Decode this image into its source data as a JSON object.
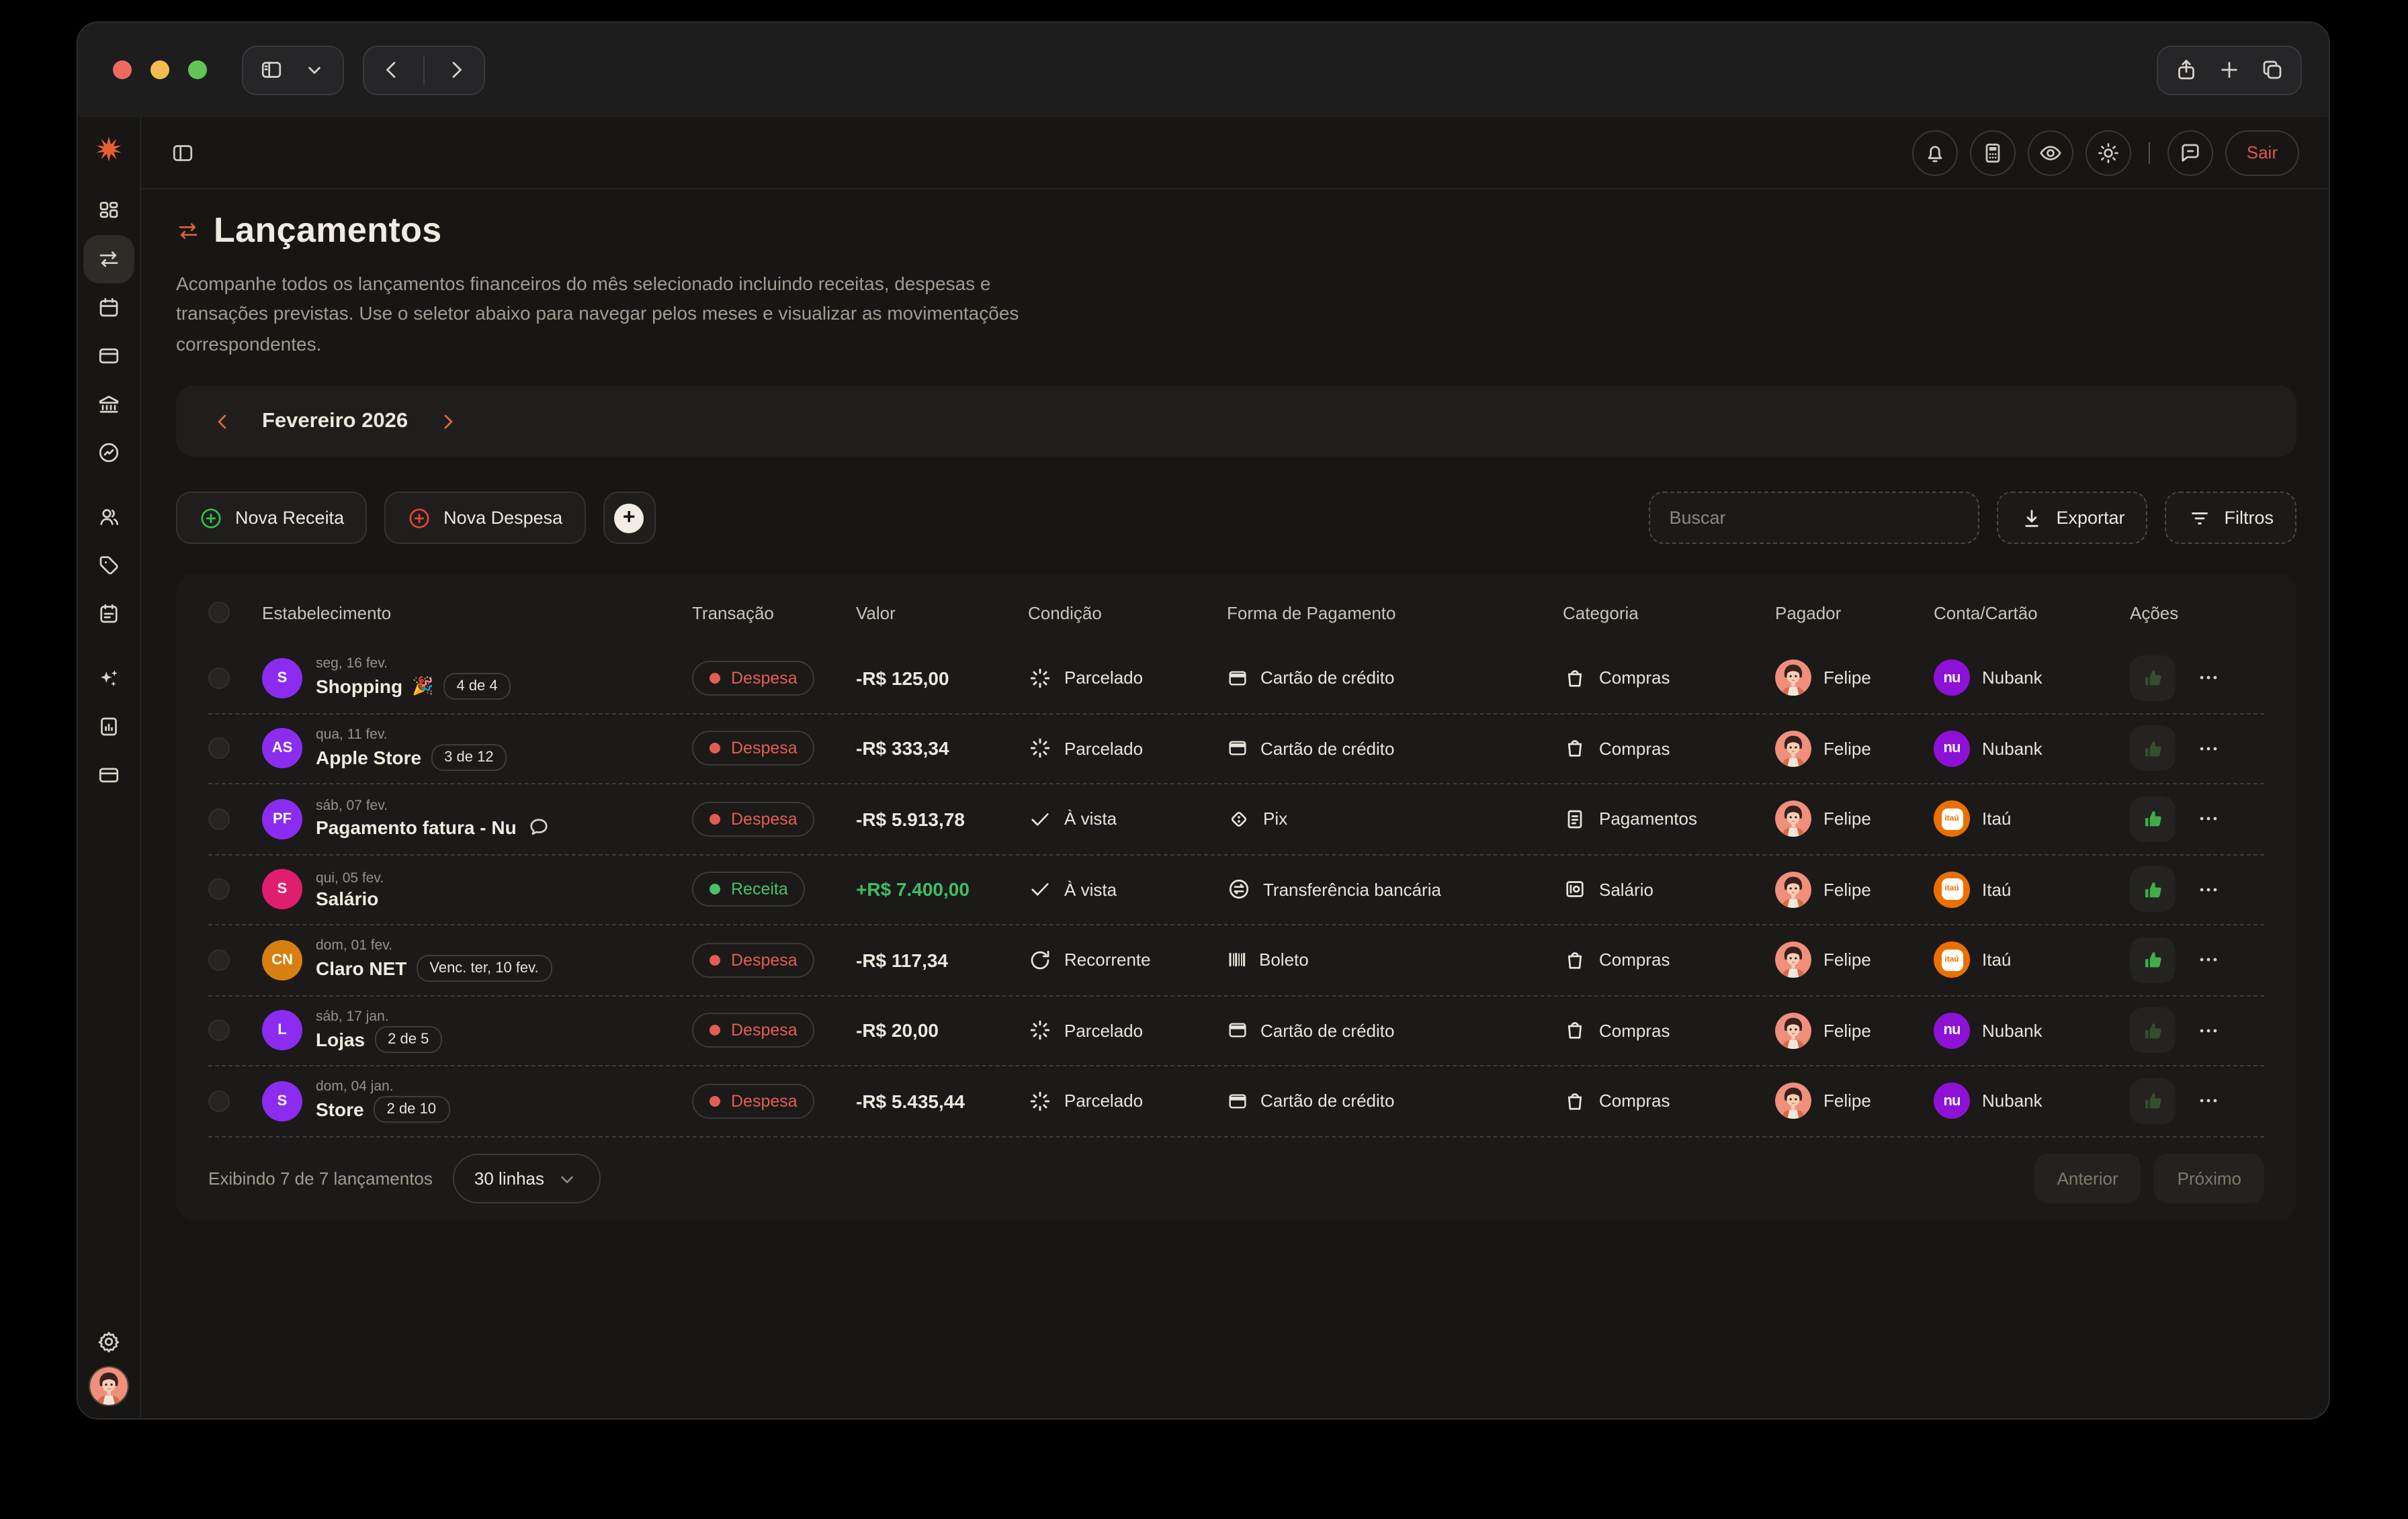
{
  "window": {
    "toolbar_icons": [
      "sidebar-panel-icon",
      "chevron-down-icon",
      "chevron-left-icon",
      "chevron-right-icon",
      "share-icon",
      "plus-icon",
      "tabs-icon"
    ]
  },
  "app": {
    "header": {
      "logout_label": "Sair",
      "icons": [
        "bell-icon",
        "calculator-icon",
        "eye-icon",
        "sun-icon",
        "chat-icon"
      ]
    },
    "sidebar": {
      "logo_icon": "logo-asterisk-icon",
      "items": [
        {
          "name": "sidebar-item-dashboard",
          "icon": "dashboard-icon",
          "active": false
        },
        {
          "name": "sidebar-item-transactions",
          "icon": "transfers-icon",
          "active": true
        },
        {
          "name": "sidebar-item-calendar",
          "icon": "calendar-icon",
          "active": false
        },
        {
          "name": "sidebar-item-cards",
          "icon": "card-icon",
          "active": false
        },
        {
          "name": "sidebar-item-bank",
          "icon": "bank-icon",
          "active": false
        },
        {
          "name": "sidebar-item-activity",
          "icon": "activity-icon",
          "active": false,
          "gap_after": true
        },
        {
          "name": "sidebar-item-users",
          "icon": "users-icon",
          "active": false
        },
        {
          "name": "sidebar-item-tags",
          "icon": "tag-icon",
          "active": false
        },
        {
          "name": "sidebar-item-planning",
          "icon": "clipboard-icon",
          "active": false,
          "gap_after": true
        },
        {
          "name": "sidebar-item-ai",
          "icon": "sparkles-icon",
          "active": false
        },
        {
          "name": "sidebar-item-reports",
          "icon": "report-icon",
          "active": false
        },
        {
          "name": "sidebar-item-accounts",
          "icon": "wallet-icon",
          "active": false
        }
      ],
      "settings_icon": "gear-icon"
    },
    "page": {
      "title": "Lançamentos",
      "description": "Acompanhe todos os lançamentos financeiros do mês selecionado incluindo receitas, despesas e transações previstas. Use o seletor abaixo para navegar pelos meses e visualizar as movimentações correspondentes.",
      "month_selector": {
        "label": "Fevereiro 2026"
      },
      "actions": {
        "nova_receita": "Nova Receita",
        "nova_despesa": "Nova Despesa",
        "search_placeholder": "Buscar",
        "exportar": "Exportar",
        "filtros": "Filtros"
      },
      "table": {
        "columns": [
          "Estabelecimento",
          "Transação",
          "Valor",
          "Condição",
          "Forma de Pagamento",
          "Categoria",
          "Pagador",
          "Conta/Cartão",
          "Ações"
        ],
        "colors": {
          "despesa": "#e45d52",
          "receita": "#47c268",
          "value_negative": "#ece8e1",
          "value_positive": "#3fbf63",
          "accent_orange": "#e65f33"
        },
        "rows": [
          {
            "avatar": {
              "initials": "S",
              "bg": "#8b2cf0"
            },
            "date": "seg, 16 fev.",
            "name": "Shopping",
            "emoji": "🎉",
            "badge": "4 de 4",
            "has_comment": false,
            "type": {
              "label": "Despesa",
              "color": "#e45d52"
            },
            "value": {
              "text": "-R$ 125,00",
              "color": "#ece8e1"
            },
            "condition": {
              "label": "Parcelado",
              "icon": "parcelado-icon"
            },
            "payment": {
              "label": "Cartão de crédito",
              "icon": "creditcard-icon"
            },
            "category": {
              "label": "Compras",
              "icon": "bag-icon"
            },
            "payer": "Felipe",
            "account": {
              "label": "Nubank",
              "brand": "nubank"
            },
            "thumb_active": false
          },
          {
            "avatar": {
              "initials": "AS",
              "bg": "#8b2cf0"
            },
            "date": "qua, 11 fev.",
            "name": "Apple Store",
            "emoji": "",
            "badge": "3 de 12",
            "has_comment": false,
            "type": {
              "label": "Despesa",
              "color": "#e45d52"
            },
            "value": {
              "text": "-R$ 333,34",
              "color": "#ece8e1"
            },
            "condition": {
              "label": "Parcelado",
              "icon": "parcelado-icon"
            },
            "payment": {
              "label": "Cartão de crédito",
              "icon": "creditcard-icon"
            },
            "category": {
              "label": "Compras",
              "icon": "bag-icon"
            },
            "payer": "Felipe",
            "account": {
              "label": "Nubank",
              "brand": "nubank"
            },
            "thumb_active": false
          },
          {
            "avatar": {
              "initials": "PF",
              "bg": "#8b2cf0"
            },
            "date": "sáb, 07 fev.",
            "name": "Pagamento fatura - Nuba",
            "emoji": "",
            "badge": "",
            "has_comment": true,
            "type": {
              "label": "Despesa",
              "color": "#e45d52"
            },
            "value": {
              "text": "-R$ 5.913,78",
              "color": "#ece8e1"
            },
            "condition": {
              "label": "À vista",
              "icon": "avista-icon"
            },
            "payment": {
              "label": "Pix",
              "icon": "pix-icon"
            },
            "category": {
              "label": "Pagamentos",
              "icon": "receipt-icon"
            },
            "payer": "Felipe",
            "account": {
              "label": "Itaú",
              "brand": "itau"
            },
            "thumb_active": true
          },
          {
            "avatar": {
              "initials": "S",
              "bg": "#e01e6e"
            },
            "date": "qui, 05 fev.",
            "name": "Salário",
            "emoji": "",
            "badge": "",
            "has_comment": false,
            "type": {
              "label": "Receita",
              "color": "#47c268"
            },
            "value": {
              "text": "+R$ 7.400,00",
              "color": "#3fbf63"
            },
            "condition": {
              "label": "À vista",
              "icon": "avista-icon"
            },
            "payment": {
              "label": "Transferência bancária",
              "icon": "transfer-bank-icon"
            },
            "category": {
              "label": "Salário",
              "icon": "salary-icon"
            },
            "payer": "Felipe",
            "account": {
              "label": "Itaú",
              "brand": "itau"
            },
            "thumb_active": true
          },
          {
            "avatar": {
              "initials": "CN",
              "bg": "#d87f12"
            },
            "date": "dom, 01 fev.",
            "name": "Claro NET",
            "emoji": "",
            "badge": "Venc. ter, 10 fev.",
            "has_comment": false,
            "type": {
              "label": "Despesa",
              "color": "#e45d52"
            },
            "value": {
              "text": "-R$ 117,34",
              "color": "#ece8e1"
            },
            "condition": {
              "label": "Recorrente",
              "icon": "recorrente-icon"
            },
            "payment": {
              "label": "Boleto",
              "icon": "boleto-icon"
            },
            "category": {
              "label": "Compras",
              "icon": "bag-icon"
            },
            "payer": "Felipe",
            "account": {
              "label": "Itaú",
              "brand": "itau"
            },
            "thumb_active": true
          },
          {
            "avatar": {
              "initials": "L",
              "bg": "#8b2cf0"
            },
            "date": "sáb, 17 jan.",
            "name": "Lojas",
            "emoji": "",
            "badge": "2 de 5",
            "has_comment": false,
            "type": {
              "label": "Despesa",
              "color": "#e45d52"
            },
            "value": {
              "text": "-R$ 20,00",
              "color": "#ece8e1"
            },
            "condition": {
              "label": "Parcelado",
              "icon": "parcelado-icon"
            },
            "payment": {
              "label": "Cartão de crédito",
              "icon": "creditcard-icon"
            },
            "category": {
              "label": "Compras",
              "icon": "bag-icon"
            },
            "payer": "Felipe",
            "account": {
              "label": "Nubank",
              "brand": "nubank"
            },
            "thumb_active": false
          },
          {
            "avatar": {
              "initials": "S",
              "bg": "#8b2cf0"
            },
            "date": "dom, 04 jan.",
            "name": "Store",
            "emoji": "",
            "badge": "2 de 10",
            "has_comment": false,
            "type": {
              "label": "Despesa",
              "color": "#e45d52"
            },
            "value": {
              "text": "-R$ 5.435,44",
              "color": "#ece8e1"
            },
            "condition": {
              "label": "Parcelado",
              "icon": "parcelado-icon"
            },
            "payment": {
              "label": "Cartão de crédito",
              "icon": "creditcard-icon"
            },
            "category": {
              "label": "Compras",
              "icon": "bag-icon"
            },
            "payer": "Felipe",
            "account": {
              "label": "Nubank",
              "brand": "nubank"
            },
            "thumb_active": false
          }
        ]
      },
      "footer": {
        "summary": "Exibindo 7 de 7 lançamentos",
        "rows_per_page": "30 linhas",
        "prev": "Anterior",
        "next": "Próximo"
      }
    }
  }
}
